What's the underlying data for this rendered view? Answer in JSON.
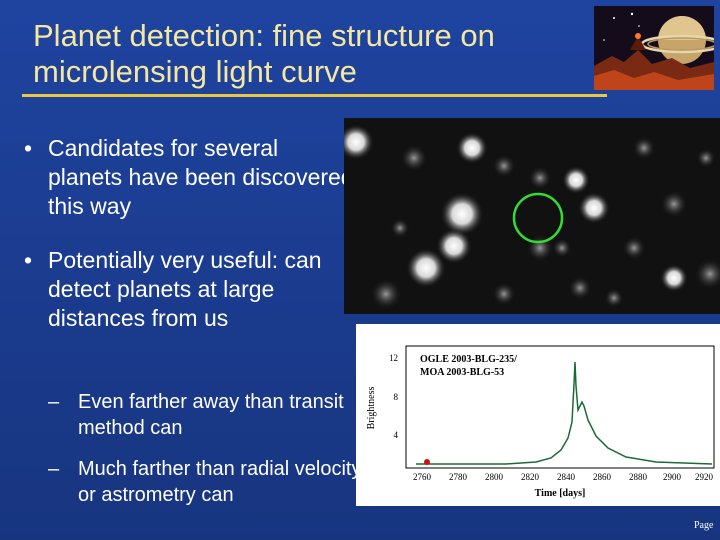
{
  "title": {
    "line1": "Planet detection: fine structure on",
    "line2": "microlensing light curve"
  },
  "bullets": [
    {
      "text": "Candidates for several planets have been discovered this way"
    },
    {
      "text": "Potentially very useful: can detect planets at large distances from us"
    }
  ],
  "sub_bullets": [
    {
      "text": "Even farther away than transit method can"
    },
    {
      "text": "Much farther than radial velocity or astrometry can"
    }
  ],
  "bullet_marker": "•",
  "sub_marker": "–",
  "light_curve": {
    "label_line1": "OGLE 2003-BLG-235/",
    "label_line2": "MOA 2003-BLG-53",
    "ylabel": "Brightness",
    "xlabel": "Time [days]",
    "y_ticks": [
      "12",
      "8",
      "4"
    ],
    "x_ticks": [
      "2760",
      "2780",
      "2800",
      "2820",
      "2840",
      "2860",
      "2880",
      "2900",
      "2920"
    ]
  },
  "footer": {
    "page_label": "Page"
  },
  "colors": {
    "background": "#1c3c8c",
    "title": "#f4e7a0",
    "rule": "#e8c840",
    "curve": "#1a6a3a",
    "circle": "#33dd33"
  }
}
